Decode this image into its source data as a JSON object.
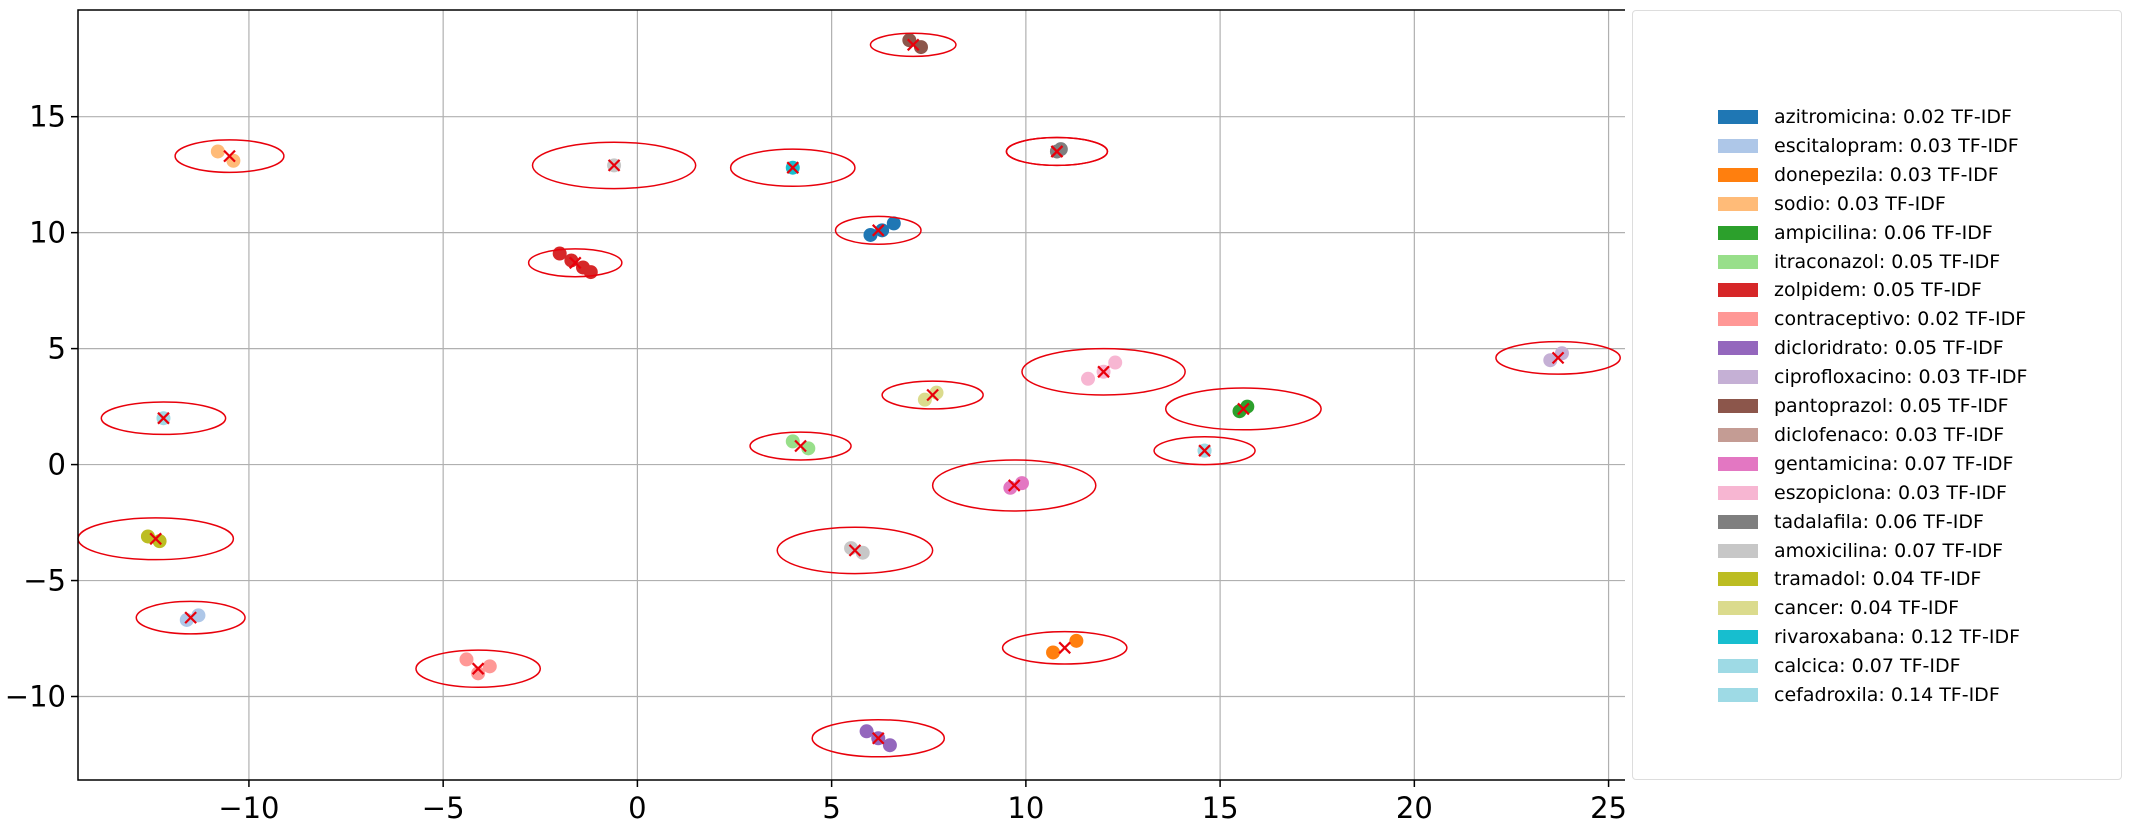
{
  "chart_data": {
    "type": "scatter",
    "title": "",
    "xlabel": "",
    "ylabel": "",
    "xlim": [
      -14.4,
      25.5
    ],
    "ylim": [
      -13.6,
      19.6
    ],
    "x_ticks": [
      -10,
      -5,
      0,
      5,
      10,
      15,
      20,
      25
    ],
    "y_ticks": [
      -10,
      -5,
      0,
      5,
      10,
      15
    ],
    "x_tick_labels": [
      "−10",
      "−5",
      "0",
      "5",
      "10",
      "15",
      "20",
      "25"
    ],
    "y_tick_labels": [
      "−10",
      "−5",
      "0",
      "5",
      "10",
      "15"
    ],
    "grid": true,
    "legend_position": "right",
    "centroid_marker_color": "#e8000b",
    "cluster_circle_color": "#e8000b",
    "series": [
      {
        "name": "azitromicina: 0.02 TF-IDF",
        "color": "#1f77b4",
        "points": [
          [
            6.0,
            9.9
          ],
          [
            6.3,
            10.1
          ],
          [
            6.6,
            10.4
          ]
        ],
        "centroid": [
          6.2,
          10.1
        ],
        "radius": [
          1.1,
          0.6
        ]
      },
      {
        "name": "escitalopram: 0.03 TF-IDF",
        "color": "#aec7e8",
        "points": [
          [
            -11.6,
            -6.7
          ],
          [
            -11.3,
            -6.5
          ]
        ],
        "centroid": [
          -11.5,
          -6.6
        ],
        "radius": [
          1.4,
          0.7
        ]
      },
      {
        "name": "donepezila: 0.03 TF-IDF",
        "color": "#ff7f0e",
        "points": [
          [
            10.7,
            -8.1
          ],
          [
            11.3,
            -7.6
          ]
        ],
        "centroid": [
          11.0,
          -7.9
        ],
        "radius": [
          1.6,
          0.7
        ]
      },
      {
        "name": "sodio: 0.03 TF-IDF",
        "color": "#ffbb78",
        "points": [
          [
            -10.8,
            13.5
          ],
          [
            -10.4,
            13.1
          ]
        ],
        "centroid": [
          -10.5,
          13.3
        ],
        "radius": [
          1.4,
          0.7
        ]
      },
      {
        "name": "ampicilina: 0.06 TF-IDF",
        "color": "#2ca02c",
        "points": [
          [
            15.5,
            2.3
          ],
          [
            15.7,
            2.5
          ]
        ],
        "centroid": [
          15.6,
          2.4
        ],
        "radius": [
          2.0,
          0.9
        ]
      },
      {
        "name": "itraconazol: 0.05 TF-IDF",
        "color": "#98df8a",
        "points": [
          [
            4.0,
            1.0
          ],
          [
            4.4,
            0.7
          ]
        ],
        "centroid": [
          4.2,
          0.8
        ],
        "radius": [
          1.3,
          0.6
        ]
      },
      {
        "name": "zolpidem: 0.05 TF-IDF",
        "color": "#d62728",
        "points": [
          [
            -2.0,
            9.1
          ],
          [
            -1.7,
            8.8
          ],
          [
            -1.4,
            8.5
          ],
          [
            -1.2,
            8.3
          ]
        ],
        "centroid": [
          -1.6,
          8.7
        ],
        "radius": [
          1.2,
          0.6
        ]
      },
      {
        "name": "contraceptivo: 0.02 TF-IDF",
        "color": "#ff9896",
        "points": [
          [
            -4.4,
            -8.4
          ],
          [
            -4.1,
            -9.0
          ],
          [
            -3.8,
            -8.7
          ]
        ],
        "centroid": [
          -4.1,
          -8.8
        ],
        "radius": [
          1.6,
          0.8
        ]
      },
      {
        "name": "dicloridrato: 0.05 TF-IDF",
        "color": "#9467bd",
        "points": [
          [
            5.9,
            -11.5
          ],
          [
            6.2,
            -11.8
          ],
          [
            6.5,
            -12.1
          ]
        ],
        "centroid": [
          6.2,
          -11.8
        ],
        "radius": [
          1.7,
          0.8
        ]
      },
      {
        "name": "ciprofloxacino: 0.03 TF-IDF",
        "color": "#c5b0d5",
        "points": [
          [
            23.5,
            4.5
          ],
          [
            23.8,
            4.8
          ]
        ],
        "centroid": [
          23.7,
          4.6
        ],
        "radius": [
          1.6,
          0.7
        ]
      },
      {
        "name": "pantoprazol: 0.05 TF-IDF",
        "color": "#8c564b",
        "points": [
          [
            7.0,
            18.3
          ],
          [
            7.3,
            18.0
          ]
        ],
        "centroid": [
          7.1,
          18.1
        ],
        "radius": [
          1.1,
          0.5
        ]
      },
      {
        "name": "diclofenaco: 0.03 TF-IDF",
        "color": "#c49c94",
        "points": [
          [
            10.8,
            13.5
          ]
        ],
        "centroid": [
          10.8,
          13.5
        ],
        "radius": [
          1.3,
          0.6
        ]
      },
      {
        "name": "gentamicina: 0.07 TF-IDF",
        "color": "#e377c2",
        "points": [
          [
            9.6,
            -1.0
          ],
          [
            9.9,
            -0.8
          ]
        ],
        "centroid": [
          9.7,
          -0.9
        ],
        "radius": [
          2.1,
          1.1
        ]
      },
      {
        "name": "eszopiclona: 0.03 TF-IDF",
        "color": "#f7b6d2",
        "points": [
          [
            11.6,
            3.7
          ],
          [
            12.0,
            4.0
          ],
          [
            12.3,
            4.4
          ]
        ],
        "centroid": [
          12.0,
          4.0
        ],
        "radius": [
          2.1,
          1.0
        ]
      },
      {
        "name": "tadalafila: 0.06 TF-IDF",
        "color": "#7f7f7f",
        "points": [
          [
            10.8,
            13.5
          ],
          [
            10.9,
            13.6
          ]
        ],
        "centroid": [
          10.8,
          13.5
        ],
        "radius": [
          1.3,
          0.6
        ]
      },
      {
        "name": "amoxicilina: 0.07 TF-IDF",
        "color": "#c7c7c7",
        "points": [
          [
            5.5,
            -3.6
          ],
          [
            5.8,
            -3.8
          ],
          [
            14.6,
            0.6
          ],
          [
            -0.6,
            12.9
          ]
        ],
        "centroid": [
          5.6,
          -3.7
        ],
        "radius": [
          2.0,
          1.0
        ]
      },
      {
        "name": "tramadol: 0.04 TF-IDF",
        "color": "#bcbd22",
        "points": [
          [
            -12.6,
            -3.1
          ],
          [
            -12.3,
            -3.3
          ]
        ],
        "centroid": [
          -12.4,
          -3.2
        ],
        "radius": [
          2.0,
          0.9
        ]
      },
      {
        "name": "cancer: 0.04 TF-IDF",
        "color": "#dbdb8d",
        "points": [
          [
            7.4,
            2.8
          ],
          [
            7.7,
            3.1
          ]
        ],
        "centroid": [
          7.6,
          3.0
        ],
        "radius": [
          1.3,
          0.6
        ]
      },
      {
        "name": "rivaroxabana: 0.12 TF-IDF",
        "color": "#17becf",
        "points": [
          [
            4.0,
            12.8
          ]
        ],
        "centroid": [
          4.0,
          12.8
        ],
        "radius": [
          1.6,
          0.8
        ]
      },
      {
        "name": "calcica: 0.07 TF-IDF",
        "color": "#9edae5",
        "points": [
          [
            -12.2,
            2.0
          ]
        ],
        "centroid": [
          -12.2,
          2.0
        ],
        "radius": [
          1.6,
          0.7
        ]
      },
      {
        "name": "cefadroxila: 0.14 TF-IDF",
        "color": "#9edae5",
        "points": [
          [
            14.6,
            0.6
          ]
        ],
        "centroid": [
          14.6,
          0.6
        ],
        "radius": [
          1.3,
          0.6
        ]
      }
    ],
    "extra_clusters": [
      {
        "centroid": [
          -0.6,
          12.9
        ],
        "radius": [
          2.1,
          1.0
        ]
      }
    ]
  }
}
